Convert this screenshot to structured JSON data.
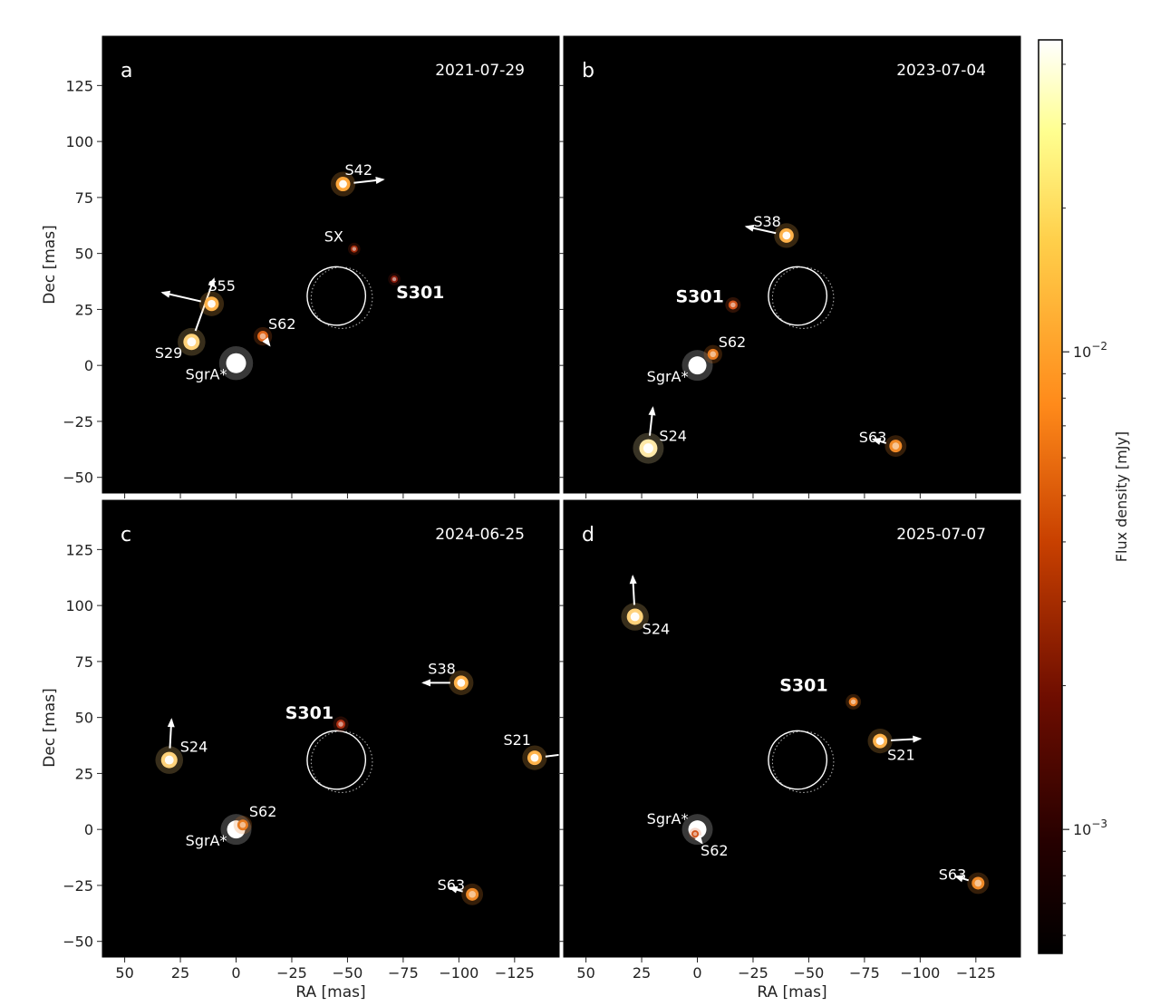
{
  "figure": {
    "xlabel": "RA [mas]",
    "ylabel": "Dec [mas]",
    "xticks": [
      50,
      25,
      0,
      -25,
      -50,
      -75,
      -100,
      -125
    ],
    "xtick_labels": [
      "50",
      "25",
      "0",
      "−25",
      "−50",
      "−75",
      "−100",
      "−125"
    ],
    "yticks": [
      125,
      100,
      75,
      50,
      25,
      0,
      -25,
      -50
    ],
    "ytick_labels": [
      "125",
      "100",
      "75",
      "50",
      "25",
      "0",
      "−25",
      "−50"
    ],
    "colorbar": {
      "label": "Flux density [mJy]",
      "scale": "log",
      "ticks": [
        {
          "base": "10",
          "exp": "−2",
          "value": 0.01
        },
        {
          "base": "10",
          "exp": "−3",
          "value": 0.001
        }
      ],
      "colormap": "afmhot"
    }
  },
  "chart_data": [
    {
      "type": "scatter",
      "panel_letter": "a",
      "date": "2021-07-29",
      "xlim": [
        60,
        -145
      ],
      "ylim": [
        -57,
        147
      ],
      "x_axis_labels": false,
      "y_axis_labels": true,
      "sources": [
        {
          "name": "SgrA*",
          "ra": 0,
          "dec": 1,
          "size": 11,
          "color": "#ffffff",
          "label_dx": -10,
          "label_dy": 18,
          "anchor": "end",
          "bold": false
        },
        {
          "name": "S29",
          "ra": 20,
          "dec": 10.5,
          "size": 9,
          "color": "#ffd27a",
          "label_dx": -10,
          "label_dy": 18,
          "anchor": "end",
          "bold": false,
          "vx": 10,
          "vy": 28
        },
        {
          "name": "S55",
          "ra": 11,
          "dec": 27.5,
          "size": 8,
          "color": "#ffb24a",
          "label_dx": -4,
          "label_dy": -14,
          "anchor": "start",
          "bold": false,
          "vx": -22,
          "vy": 5
        },
        {
          "name": "S62",
          "ra": -12,
          "dec": 13,
          "size": 6,
          "color": "#e0661a",
          "label_dx": 6,
          "label_dy": -8,
          "anchor": "start",
          "bold": false,
          "vx": 3,
          "vy": -4
        },
        {
          "name": "S42",
          "ra": -48,
          "dec": 81,
          "size": 8,
          "color": "#ffa63a",
          "label_dx": 2,
          "label_dy": -10,
          "anchor": "start",
          "bold": false,
          "vx": 18,
          "vy": 2
        },
        {
          "name": "SX",
          "ra": -53,
          "dec": 52,
          "size": 4,
          "color": "#a12a0a",
          "label_dx": -12,
          "label_dy": -8,
          "anchor": "end",
          "bold": false
        },
        {
          "name": "S301",
          "ra": -71,
          "dec": 38.5,
          "size": 4,
          "color": "#8a1c0c",
          "label_dx": 2,
          "label_dy": 21,
          "anchor": "start",
          "bold": true
        }
      ]
    },
    {
      "type": "scatter",
      "panel_letter": "b",
      "date": "2023-07-04",
      "xlim": [
        60,
        -145
      ],
      "ylim": [
        -57,
        147
      ],
      "x_axis_labels": false,
      "y_axis_labels": false,
      "sources": [
        {
          "name": "SgrA*",
          "ra": 0,
          "dec": 0,
          "size": 10,
          "color": "#ffffff",
          "label_dx": -10,
          "label_dy": 18,
          "anchor": "end",
          "bold": false
        },
        {
          "name": "S62",
          "ra": -7,
          "dec": 5,
          "size": 6,
          "color": "#e67a1f",
          "label_dx": 6,
          "label_dy": -8,
          "anchor": "start",
          "bold": false
        },
        {
          "name": "S301",
          "ra": -16,
          "dec": 27,
          "size": 5,
          "color": "#d4541a",
          "label_dx": -10,
          "label_dy": -3,
          "anchor": "end",
          "bold": true
        },
        {
          "name": "S38",
          "ra": -40,
          "dec": 58,
          "size": 8,
          "color": "#ffb24a",
          "label_dx": -6,
          "label_dy": -10,
          "anchor": "end",
          "bold": false,
          "vx": -18,
          "vy": 4
        },
        {
          "name": "S24",
          "ra": 22,
          "dec": -37,
          "size": 10,
          "color": "#ffe9a8",
          "label_dx": 12,
          "label_dy": -8,
          "anchor": "start",
          "bold": false,
          "vx": 2,
          "vy": 18
        },
        {
          "name": "S63",
          "ra": -89,
          "dec": -36,
          "size": 7,
          "color": "#f08a28",
          "label_dx": -10,
          "label_dy": -4,
          "anchor": "end",
          "bold": false,
          "vx": -10,
          "vy": 3
        }
      ]
    },
    {
      "type": "scatter",
      "panel_letter": "c",
      "date": "2024-06-25",
      "xlim": [
        60,
        -145
      ],
      "ylim": [
        -57,
        147
      ],
      "x_axis_labels": true,
      "y_axis_labels": true,
      "sources": [
        {
          "name": "SgrA*",
          "ra": 0,
          "dec": 0,
          "size": 10,
          "color": "#ffffff",
          "label_dx": -10,
          "label_dy": 18,
          "anchor": "end",
          "bold": false
        },
        {
          "name": "S62",
          "ra": -3,
          "dec": 2,
          "size": 6,
          "color": "#e67a1f",
          "label_dx": 7,
          "label_dy": -9,
          "anchor": "start",
          "bold": false
        },
        {
          "name": "S301",
          "ra": -47,
          "dec": 47,
          "size": 5,
          "color": "#b03012",
          "label_dx": -8,
          "label_dy": -6,
          "anchor": "end",
          "bold": true
        },
        {
          "name": "S38",
          "ra": -101,
          "dec": 65.5,
          "size": 8,
          "color": "#ffb24a",
          "label_dx": -6,
          "label_dy": -10,
          "anchor": "end",
          "bold": false,
          "vx": -17,
          "vy": 0
        },
        {
          "name": "S21",
          "ra": -134,
          "dec": 32,
          "size": 8,
          "color": "#ffb24a",
          "label_dx": -4,
          "label_dy": -14,
          "anchor": "end",
          "bold": false,
          "vx": 17,
          "vy": 2
        },
        {
          "name": "S24",
          "ra": 30,
          "dec": 31,
          "size": 9,
          "color": "#ffd27a",
          "label_dx": 12,
          "label_dy": -9,
          "anchor": "start",
          "bold": false,
          "vx": 1,
          "vy": 18
        },
        {
          "name": "S63",
          "ra": -106,
          "dec": -29,
          "size": 7,
          "color": "#f08a28",
          "label_dx": -8,
          "label_dy": -5,
          "anchor": "end",
          "bold": false,
          "vx": -10,
          "vy": 3
        }
      ]
    },
    {
      "type": "scatter",
      "panel_letter": "d",
      "date": "2025-07-07",
      "xlim": [
        60,
        -145
      ],
      "ylim": [
        -57,
        147
      ],
      "x_axis_labels": true,
      "y_axis_labels": false,
      "sources": [
        {
          "name": "SgrA*",
          "ra": 0,
          "dec": 0,
          "size": 10,
          "color": "#ffffff",
          "label_dx": -10,
          "label_dy": -6,
          "anchor": "end",
          "bold": false
        },
        {
          "name": "S62",
          "ra": 1,
          "dec": -2,
          "size": 4,
          "color": "#d4541a",
          "label_dx": 6,
          "label_dy": 24,
          "anchor": "start",
          "bold": false,
          "vx": 3,
          "vy": -4
        },
        {
          "name": "S301",
          "ra": -70,
          "dec": 57,
          "size": 5,
          "color": "#e67a1f",
          "label_dx": -28,
          "label_dy": -12,
          "anchor": "end",
          "bold": true
        },
        {
          "name": "S21",
          "ra": -82,
          "dec": 39.5,
          "size": 8,
          "color": "#ffb24a",
          "label_dx": 8,
          "label_dy": 21,
          "anchor": "start",
          "bold": false,
          "vx": 18,
          "vy": 1
        },
        {
          "name": "S24",
          "ra": 28,
          "dec": 95,
          "size": 9,
          "color": "#ffd27a",
          "label_dx": 8,
          "label_dy": 19,
          "anchor": "start",
          "bold": false,
          "vx": -1,
          "vy": 18
        },
        {
          "name": "S63",
          "ra": -126,
          "dec": -24,
          "size": 7,
          "color": "#f08a28",
          "label_dx": -13,
          "label_dy": -4,
          "anchor": "end",
          "bold": false,
          "vx": -10,
          "vy": 3
        }
      ]
    }
  ]
}
